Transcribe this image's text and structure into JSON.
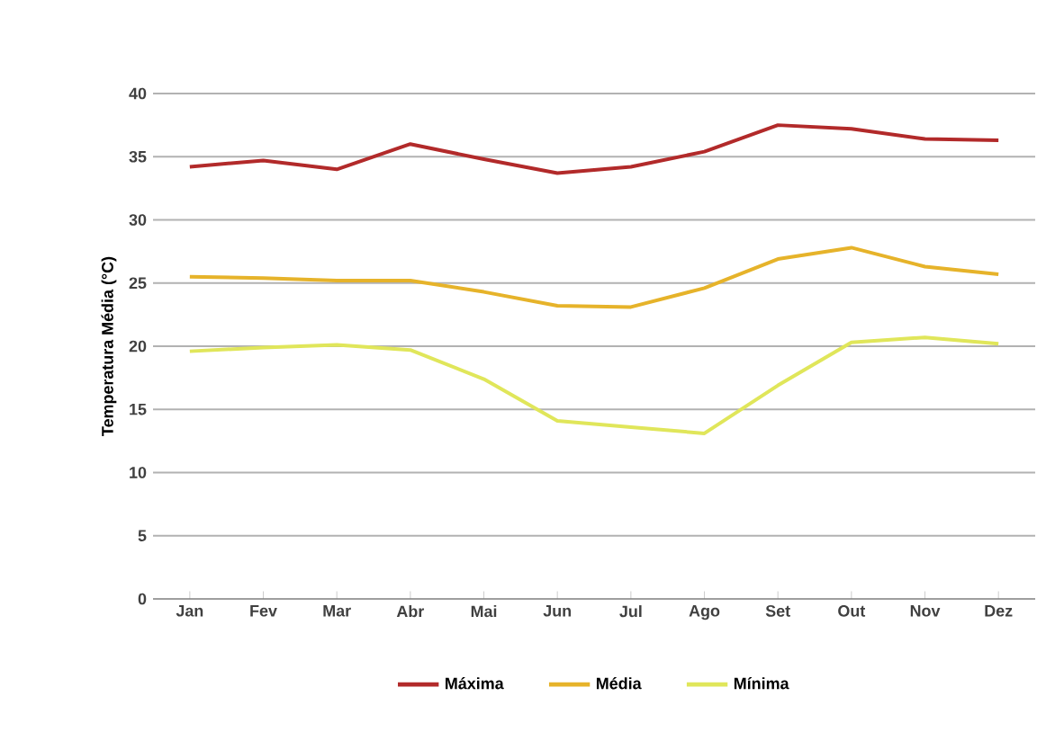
{
  "chart_data": {
    "type": "line",
    "ylabel": "Temperatura Média (°C)",
    "categories": [
      "Jan",
      "Fev",
      "Mar",
      "Abr",
      "Mai",
      "Jun",
      "Jul",
      "Ago",
      "Set",
      "Out",
      "Nov",
      "Dez"
    ],
    "series": [
      {
        "name": "Máxima",
        "color": "#b22a2a",
        "values": [
          34.2,
          34.7,
          34.0,
          36.0,
          34.8,
          33.7,
          34.2,
          35.4,
          37.5,
          37.2,
          36.4,
          36.3
        ]
      },
      {
        "name": "Média",
        "color": "#e6b32a",
        "values": [
          25.5,
          25.4,
          25.2,
          25.2,
          24.3,
          23.2,
          23.1,
          24.6,
          26.9,
          27.8,
          26.3,
          25.7
        ]
      },
      {
        "name": "Mínima",
        "color": "#e0e65a",
        "values": [
          19.6,
          19.9,
          20.1,
          19.7,
          17.4,
          14.1,
          13.6,
          13.1,
          16.9,
          20.3,
          20.7,
          20.2
        ]
      }
    ],
    "ylim": [
      0,
      40
    ],
    "yticks": [
      0,
      5,
      10,
      15,
      20,
      25,
      30,
      35,
      40
    ],
    "grid": "y",
    "legend": "bottom",
    "marker": "none",
    "line_style": "solid"
  }
}
